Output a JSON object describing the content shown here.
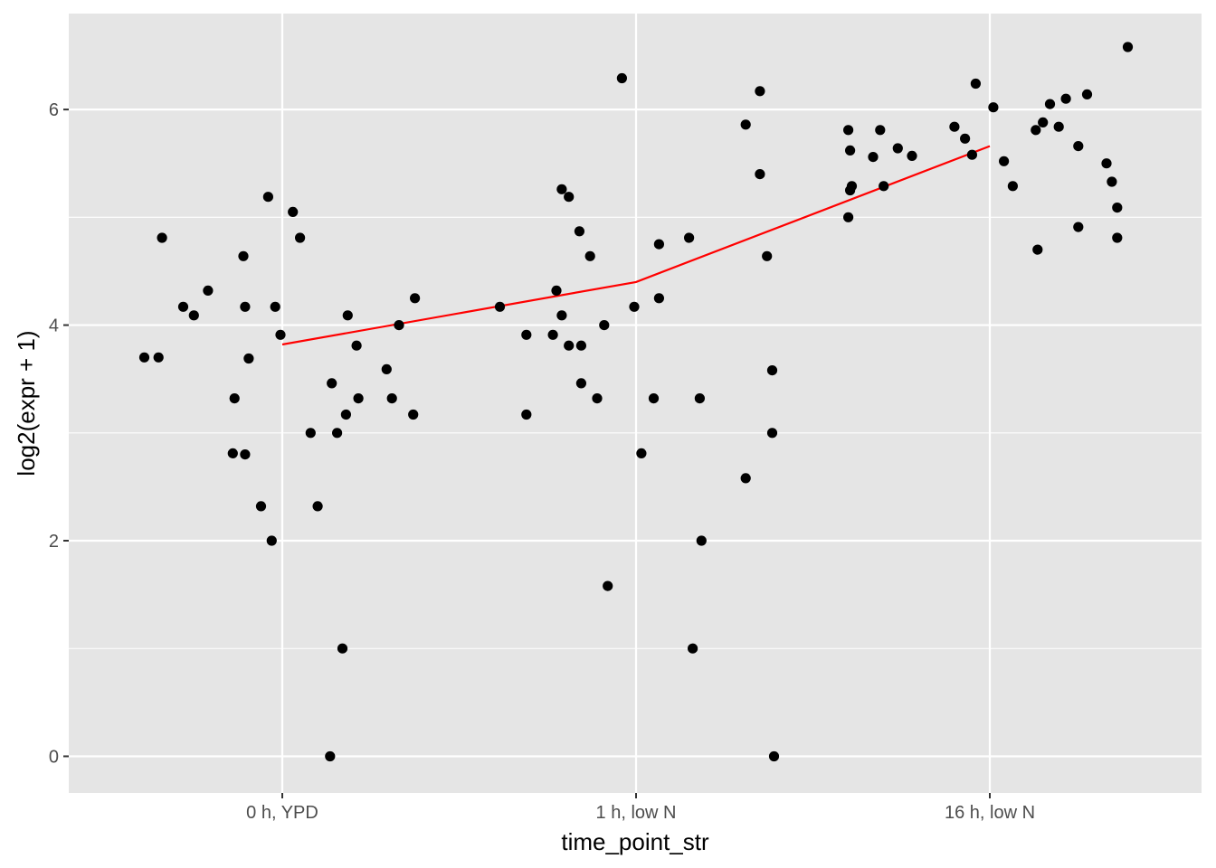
{
  "chart_data": {
    "type": "scatter",
    "xlabel": "time_point_str",
    "ylabel": "log2(expr + 1)",
    "categories": [
      "0 h, YPD",
      "1 h, low N",
      "16 h, low N"
    ],
    "ylim": [
      -0.34,
      6.89
    ],
    "yticks": [
      0,
      2,
      4,
      6
    ],
    "grid": true,
    "background_color": "#e5e5e5",
    "grid_color": "#ffffff",
    "point_color": "#000000",
    "line_color": "#ff0000",
    "points": [
      {
        "x": -0.39,
        "y": 3.7
      },
      {
        "x": -0.35,
        "y": 3.7
      },
      {
        "x": -0.34,
        "y": 4.81
      },
      {
        "x": -0.28,
        "y": 4.17
      },
      {
        "x": -0.25,
        "y": 4.09
      },
      {
        "x": -0.21,
        "y": 4.32
      },
      {
        "x": -0.14,
        "y": 2.81
      },
      {
        "x": -0.135,
        "y": 3.32
      },
      {
        "x": -0.11,
        "y": 4.64
      },
      {
        "x": -0.105,
        "y": 2.8
      },
      {
        "x": -0.105,
        "y": 4.17
      },
      {
        "x": -0.095,
        "y": 3.69
      },
      {
        "x": -0.06,
        "y": 2.32
      },
      {
        "x": -0.04,
        "y": 5.19
      },
      {
        "x": -0.03,
        "y": 2.0
      },
      {
        "x": -0.02,
        "y": 4.17
      },
      {
        "x": -0.005,
        "y": 3.91
      },
      {
        "x": 0.03,
        "y": 5.05
      },
      {
        "x": 0.05,
        "y": 4.81
      },
      {
        "x": 0.08,
        "y": 3.0
      },
      {
        "x": 0.1,
        "y": 2.32
      },
      {
        "x": 0.135,
        "y": 0.0
      },
      {
        "x": 0.14,
        "y": 3.46
      },
      {
        "x": 0.155,
        "y": 3.0
      },
      {
        "x": 0.17,
        "y": 1.0
      },
      {
        "x": 0.18,
        "y": 3.17
      },
      {
        "x": 0.185,
        "y": 4.09
      },
      {
        "x": 0.21,
        "y": 3.81
      },
      {
        "x": 0.215,
        "y": 3.32
      },
      {
        "x": 0.295,
        "y": 3.59
      },
      {
        "x": 0.31,
        "y": 3.32
      },
      {
        "x": 0.33,
        "y": 4.0
      },
      {
        "x": 0.37,
        "y": 3.17
      },
      {
        "x": 0.375,
        "y": 4.25
      },
      {
        "x": 0.615,
        "y": 4.17
      },
      {
        "x": 0.69,
        "y": 3.17
      },
      {
        "x": 0.69,
        "y": 3.91
      },
      {
        "x": 0.765,
        "y": 3.91
      },
      {
        "x": 0.775,
        "y": 4.32
      },
      {
        "x": 0.79,
        "y": 4.09
      },
      {
        "x": 0.79,
        "y": 5.26
      },
      {
        "x": 0.81,
        "y": 3.81
      },
      {
        "x": 0.81,
        "y": 5.19
      },
      {
        "x": 0.84,
        "y": 4.87
      },
      {
        "x": 0.845,
        "y": 3.46
      },
      {
        "x": 0.845,
        "y": 3.81
      },
      {
        "x": 0.87,
        "y": 4.64
      },
      {
        "x": 0.89,
        "y": 3.32
      },
      {
        "x": 0.91,
        "y": 4.0
      },
      {
        "x": 0.92,
        "y": 1.58
      },
      {
        "x": 0.96,
        "y": 6.29
      },
      {
        "x": 0.995,
        "y": 4.17
      },
      {
        "x": 1.015,
        "y": 2.81
      },
      {
        "x": 1.05,
        "y": 3.32
      },
      {
        "x": 1.065,
        "y": 4.75
      },
      {
        "x": 1.065,
        "y": 4.25
      },
      {
        "x": 1.15,
        "y": 4.81
      },
      {
        "x": 1.16,
        "y": 1.0
      },
      {
        "x": 1.18,
        "y": 3.32
      },
      {
        "x": 1.185,
        "y": 2.0
      },
      {
        "x": 1.31,
        "y": 2.58
      },
      {
        "x": 1.31,
        "y": 5.86
      },
      {
        "x": 1.35,
        "y": 6.17
      },
      {
        "x": 1.35,
        "y": 5.4
      },
      {
        "x": 1.37,
        "y": 4.64
      },
      {
        "x": 1.385,
        "y": 3.58
      },
      {
        "x": 1.385,
        "y": 3.0
      },
      {
        "x": 1.39,
        "y": 0.0
      },
      {
        "x": 1.6,
        "y": 5.0
      },
      {
        "x": 1.6,
        "y": 5.81
      },
      {
        "x": 1.605,
        "y": 5.25
      },
      {
        "x": 1.605,
        "y": 5.62
      },
      {
        "x": 1.61,
        "y": 5.29
      },
      {
        "x": 1.67,
        "y": 5.56
      },
      {
        "x": 1.69,
        "y": 5.81
      },
      {
        "x": 1.7,
        "y": 5.29
      },
      {
        "x": 1.74,
        "y": 5.64
      },
      {
        "x": 1.78,
        "y": 5.57
      },
      {
        "x": 1.9,
        "y": 5.84
      },
      {
        "x": 1.93,
        "y": 5.73
      },
      {
        "x": 1.95,
        "y": 5.58
      },
      {
        "x": 1.96,
        "y": 6.24
      },
      {
        "x": 2.01,
        "y": 6.02
      },
      {
        "x": 2.04,
        "y": 5.52
      },
      {
        "x": 2.065,
        "y": 5.29
      },
      {
        "x": 2.13,
        "y": 5.81
      },
      {
        "x": 2.135,
        "y": 4.7
      },
      {
        "x": 2.15,
        "y": 5.88
      },
      {
        "x": 2.17,
        "y": 6.05
      },
      {
        "x": 2.195,
        "y": 5.84
      },
      {
        "x": 2.215,
        "y": 6.1
      },
      {
        "x": 2.25,
        "y": 5.66
      },
      {
        "x": 2.25,
        "y": 4.91
      },
      {
        "x": 2.275,
        "y": 6.14
      },
      {
        "x": 2.33,
        "y": 5.5
      },
      {
        "x": 2.345,
        "y": 5.33
      },
      {
        "x": 2.36,
        "y": 4.81
      },
      {
        "x": 2.36,
        "y": 5.09
      },
      {
        "x": 2.39,
        "y": 6.58
      }
    ],
    "line": [
      {
        "x": 0,
        "y": 3.82
      },
      {
        "x": 1,
        "y": 4.4
      },
      {
        "x": 2,
        "y": 5.66
      }
    ]
  }
}
